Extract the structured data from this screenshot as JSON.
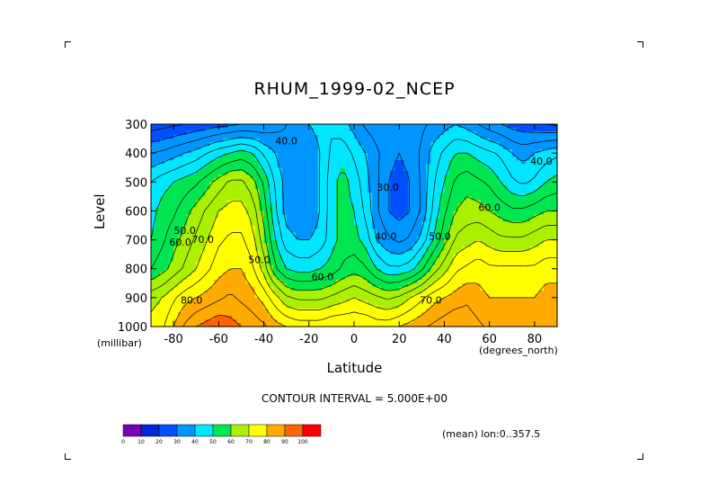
{
  "title": "RHUM_1999-02_NCEP",
  "y_axis_label": "Level",
  "y_units": "(millibar)",
  "x_axis_label": "Latitude",
  "x_units": "(degrees_north)",
  "contour_interval_text": "CONTOUR INTERVAL = 5.000E+00",
  "mean_text": "(mean) lon:0..357.5",
  "colorbar": {
    "ticks": [
      "0",
      "10",
      "20",
      "30",
      "40",
      "50",
      "60",
      "70",
      "80",
      "90",
      "100"
    ],
    "colors": [
      "#7a00b4",
      "#0028d8",
      "#0050ff",
      "#0096ff",
      "#00e6ff",
      "#00e650",
      "#aaf000",
      "#ffff00",
      "#ffaa00",
      "#ff6400",
      "#ff0000"
    ]
  },
  "chart_data": {
    "type": "heatmap",
    "title": "RHUM_1999-02_NCEP",
    "xlabel": "Latitude",
    "ylabel": "Level",
    "x_units": "degrees_north",
    "y_units": "millibar",
    "xlim": [
      -90,
      90
    ],
    "ylim": [
      1000,
      300
    ],
    "x_ticks": [
      -80,
      -60,
      -40,
      -20,
      0,
      20,
      40,
      60,
      80
    ],
    "y_ticks": [
      300,
      400,
      500,
      600,
      700,
      800,
      900,
      1000
    ],
    "contour_interval": 5,
    "contour_labels": [
      {
        "text": "40.0",
        "lat": -30,
        "level": 370
      },
      {
        "text": "40.0",
        "lat": 83,
        "level": 440
      },
      {
        "text": "30.0",
        "lat": 15,
        "level": 530
      },
      {
        "text": "60.0",
        "lat": 60,
        "level": 600
      },
      {
        "text": "50.0",
        "lat": -75,
        "level": 680
      },
      {
        "text": "60.0",
        "lat": -77,
        "level": 720
      },
      {
        "text": "70.0",
        "lat": -67,
        "level": 710
      },
      {
        "text": "40.0",
        "lat": 14,
        "level": 700
      },
      {
        "text": "50.0",
        "lat": 38,
        "level": 700
      },
      {
        "text": "50.0",
        "lat": -42,
        "level": 780
      },
      {
        "text": "60.0",
        "lat": -14,
        "level": 840
      },
      {
        "text": "70.0",
        "lat": 34,
        "level": 920
      },
      {
        "text": "80.0",
        "lat": -72,
        "level": 920
      }
    ],
    "x": [
      -90,
      -85,
      -80,
      -75,
      -70,
      -65,
      -60,
      -55,
      -50,
      -45,
      -40,
      -35,
      -30,
      -25,
      -20,
      -15,
      -10,
      -5,
      0,
      5,
      10,
      15,
      20,
      25,
      30,
      35,
      40,
      45,
      50,
      55,
      60,
      65,
      70,
      75,
      80,
      85,
      90
    ],
    "levels": [
      300,
      400,
      500,
      600,
      700,
      800,
      900,
      1000
    ],
    "values": [
      [
        22,
        23,
        24,
        25,
        26,
        27,
        28,
        29,
        30,
        30,
        31,
        33,
        35,
        38,
        40,
        42,
        44,
        42,
        38,
        34,
        32,
        30,
        30,
        32,
        34,
        36,
        38,
        40,
        38,
        35,
        32,
        30,
        28,
        27,
        26,
        25,
        24
      ],
      [
        35,
        36,
        38,
        40,
        42,
        45,
        48,
        50,
        52,
        50,
        44,
        40,
        36,
        35,
        36,
        40,
        46,
        48,
        44,
        40,
        36,
        32,
        30,
        32,
        36,
        42,
        46,
        50,
        50,
        48,
        46,
        44,
        40,
        38,
        40,
        42,
        44
      ],
      [
        45,
        48,
        50,
        52,
        54,
        58,
        62,
        66,
        66,
        62,
        54,
        44,
        38,
        36,
        36,
        40,
        48,
        52,
        48,
        42,
        36,
        30,
        28,
        30,
        36,
        44,
        50,
        56,
        58,
        56,
        54,
        50,
        46,
        44,
        46,
        50,
        52
      ],
      [
        48,
        52,
        54,
        58,
        62,
        66,
        70,
        72,
        72,
        68,
        58,
        46,
        38,
        36,
        36,
        40,
        48,
        52,
        50,
        44,
        36,
        30,
        28,
        30,
        36,
        46,
        54,
        60,
        62,
        62,
        60,
        58,
        56,
        56,
        58,
        60,
        60
      ],
      [
        50,
        54,
        58,
        62,
        66,
        70,
        74,
        76,
        76,
        72,
        62,
        50,
        42,
        40,
        40,
        42,
        48,
        52,
        52,
        48,
        40,
        36,
        34,
        36,
        42,
        50,
        58,
        66,
        68,
        70,
        68,
        66,
        66,
        66,
        68,
        70,
        70
      ],
      [
        55,
        58,
        62,
        66,
        70,
        74,
        78,
        80,
        80,
        76,
        68,
        56,
        50,
        48,
        48,
        50,
        52,
        56,
        58,
        56,
        50,
        46,
        46,
        48,
        54,
        62,
        68,
        74,
        76,
        78,
        76,
        76,
        76,
        76,
        76,
        78,
        78
      ],
      [
        68,
        70,
        74,
        78,
        80,
        82,
        84,
        86,
        84,
        82,
        78,
        72,
        66,
        64,
        64,
        64,
        66,
        68,
        70,
        68,
        66,
        64,
        66,
        70,
        74,
        78,
        80,
        82,
        84,
        82,
        80,
        80,
        80,
        80,
        80,
        82,
        82
      ],
      [
        72,
        74,
        80,
        86,
        90,
        92,
        94,
        92,
        90,
        88,
        86,
        82,
        80,
        78,
        78,
        78,
        80,
        80,
        80,
        80,
        78,
        78,
        80,
        82,
        84,
        86,
        88,
        90,
        88,
        86,
        84,
        82,
        80,
        80,
        80,
        82,
        82
      ]
    ]
  }
}
